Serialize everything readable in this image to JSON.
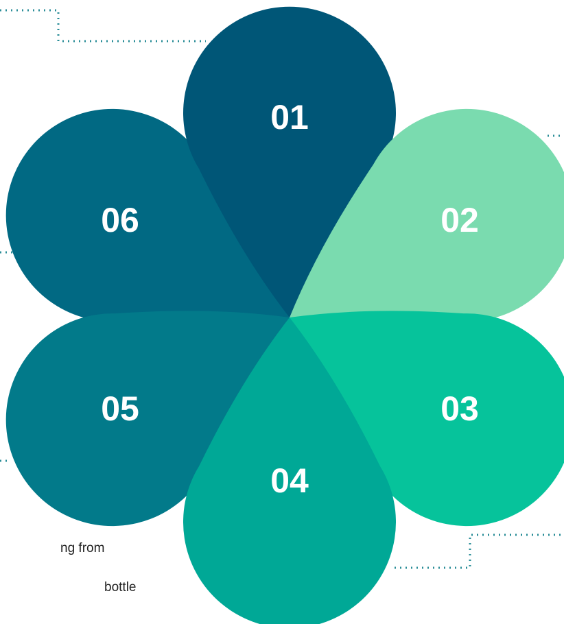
{
  "petals": [
    {
      "label": "01",
      "color": "#005677"
    },
    {
      "label": "02",
      "color": "#7adbaf"
    },
    {
      "label": "03",
      "color": "#06c39b"
    },
    {
      "label": "04",
      "color": "#00a896"
    },
    {
      "label": "05",
      "color": "#027a8a"
    },
    {
      "label": "06",
      "color": "#016983"
    }
  ],
  "side_text": [
    "ng from",
    "bottle"
  ]
}
